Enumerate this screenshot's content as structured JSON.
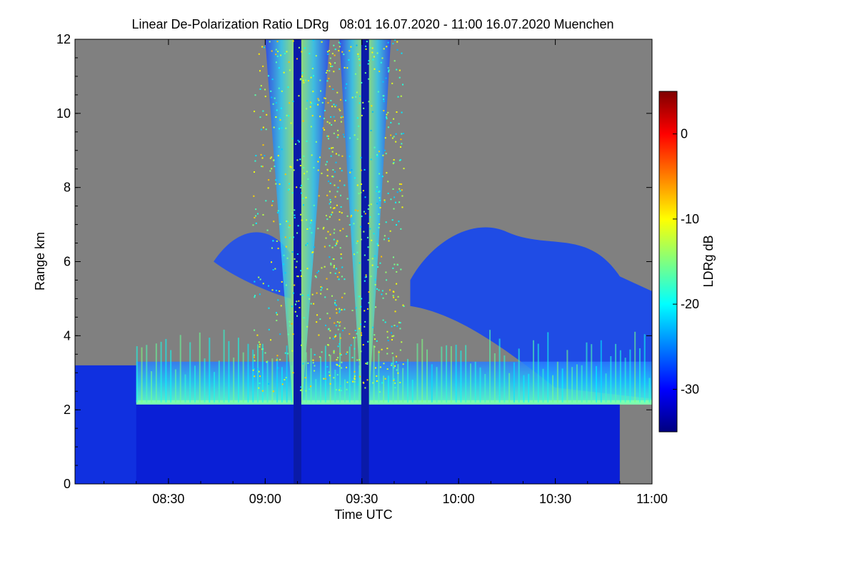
{
  "chart_data": {
    "type": "heatmap",
    "title": "Linear De-Polarization Ratio LDRg   08:01 16.07.2020 - 11:00 16.07.2020 Muenchen",
    "xlabel": "Time UTC",
    "ylabel": "Range km",
    "x_ticks": [
      "08:30",
      "09:00",
      "09:30",
      "10:00",
      "10:30",
      "11:00"
    ],
    "x_tick_minutes": [
      510,
      540,
      570,
      600,
      630,
      660
    ],
    "xlim_minutes": [
      481,
      660
    ],
    "y_ticks": [
      0,
      2,
      4,
      6,
      8,
      10,
      12
    ],
    "ylim": [
      0,
      12
    ],
    "colorbar": {
      "label": "LDRg dB",
      "ticks": [
        0,
        -10,
        -20,
        -30
      ],
      "range": [
        -35,
        5
      ],
      "colormap": "jet"
    },
    "missing_color": "#808080",
    "features": {
      "boundary_layer_top_km": 2.2,
      "towers": [
        {
          "center_minute": 550,
          "halfwidth_minutes": 10,
          "top_km": 12
        },
        {
          "center_minute": 571,
          "halfwidth_minutes": 8,
          "top_km": 12
        }
      ],
      "cloud_layer": {
        "start_minute": 585,
        "end_minute": 660,
        "base_km": 4.0,
        "top_km": 7.0
      }
    }
  }
}
